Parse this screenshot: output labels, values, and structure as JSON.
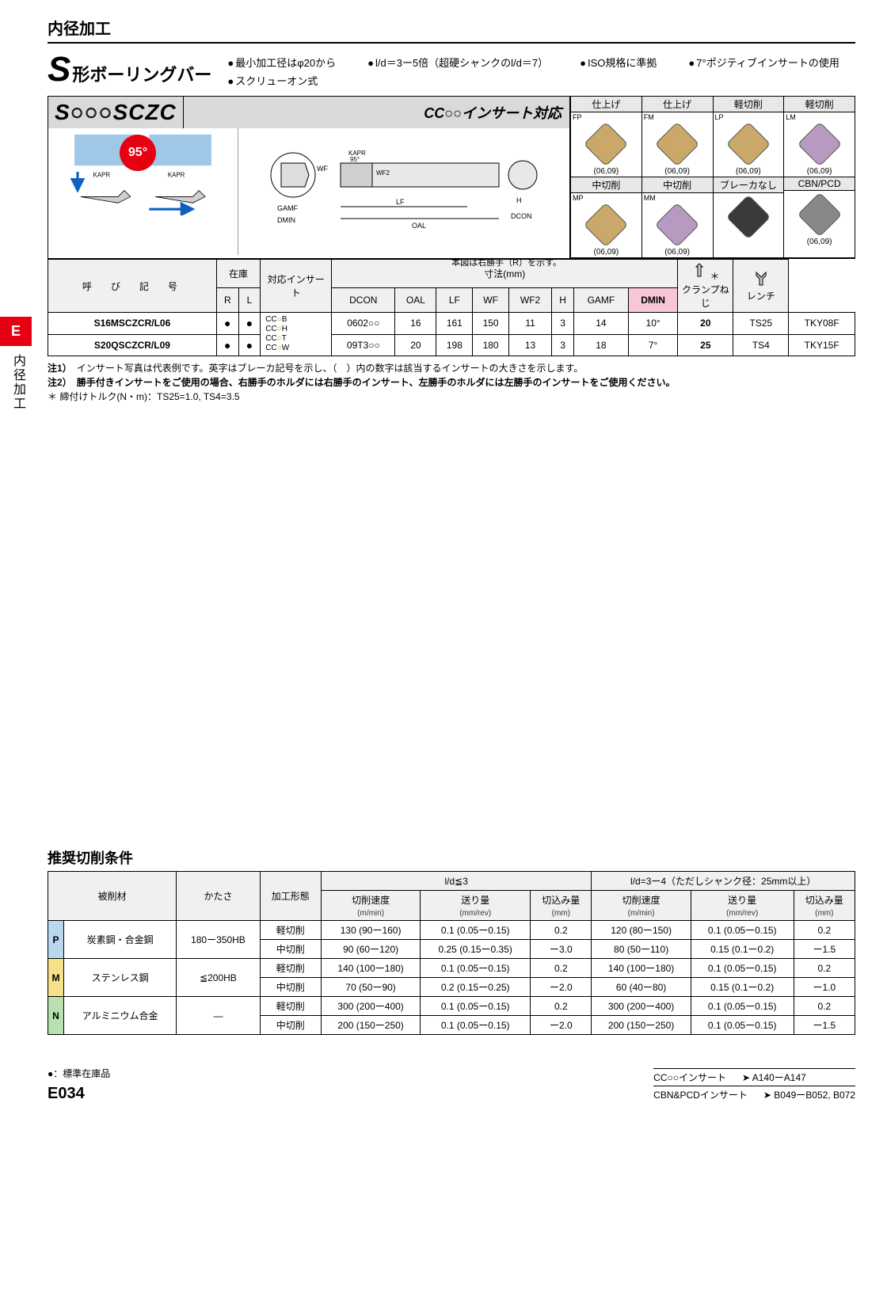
{
  "header": {
    "section": "内径加工"
  },
  "title": {
    "big": "S",
    "sub": "形ボーリングバー"
  },
  "bullets": [
    "最小加工径はφ20から",
    "l/d＝3ー5倍（超硬シャンクのl/d＝7）",
    "ISO規格に準拠",
    "7°ポジティブインサートの使用",
    "スクリューオン式"
  ],
  "code_banner": {
    "code_prefix": "S",
    "code_mid": "○○○",
    "code_suffix": "SCZC",
    "insert_label": "CC○○インサート対応"
  },
  "diag": {
    "angle": "95°",
    "kapr": "KAPR",
    "wf": "WF",
    "wf2": "WF2",
    "kapr95": "KAPR 95°",
    "gamf": "GAMF",
    "dmin": "DMIN",
    "lf": "LF",
    "oal": "OAL",
    "h": "H",
    "dcon": "DCON",
    "note": "本図は右勝手（R）を示す。"
  },
  "insert_grid": {
    "rows": [
      [
        {
          "cat": "仕上げ",
          "code": "FP",
          "sizes": "(06,09)",
          "color": "#c9a86a"
        },
        {
          "cat": "仕上げ",
          "code": "FM",
          "sizes": "(06,09)",
          "color": "#c9a86a"
        },
        {
          "cat": "軽切削",
          "code": "LP",
          "sizes": "(06,09)",
          "color": "#c9a86a"
        },
        {
          "cat": "軽切削",
          "code": "LM",
          "sizes": "(06,09)",
          "color": "#b89ac0"
        }
      ],
      [
        {
          "cat": "中切削",
          "code": "MP",
          "sizes": "(06,09)",
          "color": "#c9a86a"
        },
        {
          "cat": "中切削",
          "code": "MM",
          "sizes": "(06,09)",
          "color": "#b89ac0"
        },
        {
          "cat": "ブレーカなし",
          "code": "",
          "sizes": "",
          "color": "#3a3a3a"
        },
        {
          "cat": "CBN/PCD",
          "code": "",
          "sizes": "(06,09)",
          "color": "#888"
        }
      ]
    ]
  },
  "spec_table": {
    "headers": {
      "name": "呼　び　記　号",
      "stock": "在庫",
      "r": "R",
      "l": "L",
      "insert": "対応インサート",
      "dim": "寸法(mm)",
      "dcon": "DCON",
      "oal": "OAL",
      "lf": "LF",
      "wf": "WF",
      "wf2": "WF2",
      "h": "H",
      "gamf": "GAMF",
      "dmin": "DMIN",
      "clamp": "クランプねじ",
      "wrench": "レンチ",
      "star": "＊"
    },
    "insert_codes": [
      "CC○B",
      "CC○H",
      "CC○T",
      "CC○W"
    ],
    "rows": [
      {
        "name": "S16MSCZCR/L06",
        "r": "●",
        "l": "●",
        "ins": "0602○○",
        "dcon": "16",
        "oal": "161",
        "lf": "150",
        "wf": "11",
        "wf2": "3",
        "h": "14",
        "gamf": "10°",
        "dmin": "20",
        "clamp": "TS25",
        "wrench": "TKY08F"
      },
      {
        "name": "S20QSCZCR/L09",
        "r": "●",
        "l": "●",
        "ins": "09T3○○",
        "dcon": "20",
        "oal": "198",
        "lf": "180",
        "wf": "13",
        "wf2": "3",
        "h": "18",
        "gamf": "7°",
        "dmin": "25",
        "clamp": "TS4",
        "wrench": "TKY15F"
      }
    ]
  },
  "notes": {
    "n1_lbl": "注1）",
    "n1": "インサート写真は代表例です。英字はブレーカ記号を示し、（　）内の数字は該当するインサートの大きさを示します。",
    "n2_lbl": "注2）",
    "n2": "勝手付きインサートをご使用の場合、右勝手のホルダには右勝手のインサート、左勝手のホルダには左勝手のインサートをご使用ください。",
    "torque_lbl": "＊ 締付けトルク(N・m)：",
    "torque": "TS25=1.0, TS4=3.5"
  },
  "side": {
    "e": "E",
    "text": "内径加工"
  },
  "cond": {
    "title": "推奨切削条件",
    "headers": {
      "mat": "被削材",
      "hard": "かたさ",
      "mode": "加工形態",
      "g1": "l/d≦3",
      "g2": "l/d=3ー4（ただしシャンク径：25mm以上）",
      "speed": "切削速度",
      "speed_u": "(m/min)",
      "feed": "送り量",
      "feed_u": "(mm/rev)",
      "doc": "切込み量",
      "doc_u": "(mm)"
    },
    "rows": [
      {
        "mat_code": "P",
        "mat": "炭素鋼・合金鋼",
        "hard": "180ー350HB",
        "mode": "軽切削",
        "s1": "130 (90ー160)",
        "f1": "0.1 (0.05ー0.15)",
        "d1": "0.2",
        "s2": "120 (80ー150)",
        "f2": "0.1 (0.05ー0.15)",
        "d2": "0.2"
      },
      {
        "mode": "中切削",
        "s1": "90 (60ー120)",
        "f1": "0.25 (0.15ー0.35)",
        "d1": "ー3.0",
        "s2": "80 (50ー110)",
        "f2": "0.15 (0.1ー0.2)",
        "d2": "ー1.5"
      },
      {
        "mat_code": "M",
        "mat": "ステンレス鋼",
        "hard": "≦200HB",
        "mode": "軽切削",
        "s1": "140 (100ー180)",
        "f1": "0.1 (0.05ー0.15)",
        "d1": "0.2",
        "s2": "140 (100ー180)",
        "f2": "0.1 (0.05ー0.15)",
        "d2": "0.2"
      },
      {
        "mode": "中切削",
        "s1": "70 (50ー90)",
        "f1": "0.2 (0.15ー0.25)",
        "d1": "ー2.0",
        "s2": "60 (40ー80)",
        "f2": "0.15 (0.1ー0.2)",
        "d2": "ー1.0"
      },
      {
        "mat_code": "N",
        "mat": "アルミニウム合金",
        "hard": "—",
        "mode": "軽切削",
        "s1": "300 (200ー400)",
        "f1": "0.1 (0.05ー0.15)",
        "d1": "0.2",
        "s2": "300 (200ー400)",
        "f2": "0.1 (0.05ー0.15)",
        "d2": "0.2"
      },
      {
        "mode": "中切削",
        "s1": "200 (150ー250)",
        "f1": "0.1 (0.05ー0.15)",
        "d1": "ー2.0",
        "s2": "200 (150ー250)",
        "f2": "0.1 (0.05ー0.15)",
        "d2": "ー1.5"
      }
    ]
  },
  "footer": {
    "legend": "●：標準在庫品",
    "page": "E034",
    "refs": [
      {
        "l": "CC○○インサート",
        "r": "➤ A140ーA147"
      },
      {
        "l": "CBN&PCDインサート",
        "r": "➤ B049ーB052, B072"
      }
    ]
  }
}
